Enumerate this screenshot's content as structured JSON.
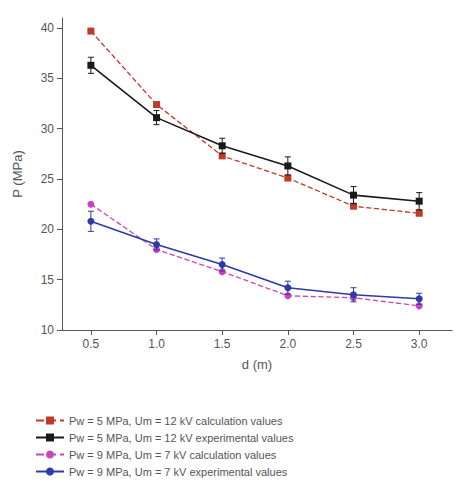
{
  "chart_data": {
    "type": "line",
    "x": [
      0.5,
      1.0,
      1.5,
      2.0,
      2.5,
      3.0
    ],
    "xlabel": "d (m)",
    "ylabel": "P (MPa)",
    "xlim": [
      0.28,
      3.25
    ],
    "ylim": [
      10,
      41
    ],
    "xticks": [
      0.5,
      {
        "value": 1.0,
        "label": "1.0"
      },
      1.5,
      {
        "value": 2.0,
        "label": "2.0"
      },
      2.5,
      {
        "value": 3.0,
        "label": "3.0"
      }
    ],
    "yticks": [
      10,
      15,
      20,
      25,
      30,
      35,
      40
    ],
    "grid": false,
    "legend": "bottom",
    "series": [
      {
        "name": "Pw = 5 MPa, Um = 12 kV calculation values",
        "color": "#c0392b",
        "line_style": "dashed",
        "marker": "square",
        "values": [
          39.7,
          32.4,
          27.3,
          25.1,
          22.3,
          21.6
        ]
      },
      {
        "name": "Pw = 5 MPa, Um = 12 kV experimental values",
        "color": "#1a1a1a",
        "line_style": "solid",
        "marker": "square",
        "values": [
          36.3,
          31.1,
          28.3,
          26.3,
          23.4,
          22.8
        ],
        "error": [
          0.8,
          0.7,
          0.75,
          0.9,
          0.85,
          0.85
        ]
      },
      {
        "name": "Pw = 9 MPa, Um = 7 kV calculation values",
        "color": "#cc44bb",
        "line_style": "dashed",
        "marker": "circle",
        "values": [
          22.5,
          18.0,
          15.8,
          13.4,
          13.2,
          12.4
        ]
      },
      {
        "name": "Pw = 9 MPa, Um = 7 kV experimental values",
        "color": "#2c3aaa",
        "line_style": "solid",
        "marker": "circle",
        "values": [
          20.8,
          18.5,
          16.5,
          14.2,
          13.5,
          13.1
        ],
        "error": [
          1.0,
          0.55,
          0.65,
          0.65,
          0.7,
          0.55
        ]
      }
    ]
  }
}
